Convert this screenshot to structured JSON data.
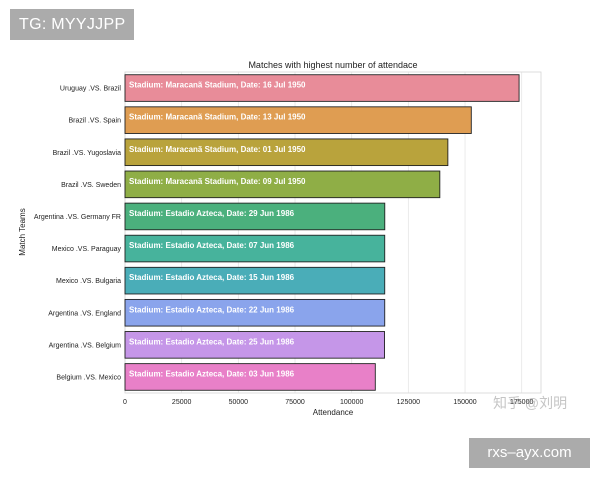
{
  "tag": {
    "text": "TG: MYYJJPP"
  },
  "footer": {
    "badge": "rxs–ayx.com"
  },
  "watermark": {
    "text": "知乎 @刘明"
  },
  "chart_data": {
    "type": "bar",
    "orientation": "horizontal",
    "title": "Matches with highest number of attendace",
    "xlabel": "Attendance",
    "ylabel": "Match Teams",
    "xlim": [
      0,
      180000
    ],
    "xticks": [
      0,
      25000,
      50000,
      75000,
      100000,
      125000,
      150000,
      175000
    ],
    "xtick_labels": [
      "0",
      "25000",
      "50000",
      "75000",
      "100000",
      "125000",
      "150000",
      "175000"
    ],
    "grid": true,
    "categories": [
      "Uruguay .VS. Brazil",
      "Brazil .VS. Spain",
      "Brazil .VS. Yugoslavia",
      "Brazil .VS. Sweden",
      "Argentina .VS. Germany FR",
      "Mexico .VS. Paraguay",
      "Mexico .VS. Bulgaria",
      "Argentina .VS. England",
      "Argentina .VS. Belgium",
      "Belgium .VS. Mexico"
    ],
    "values": [
      173850,
      152772,
      142429,
      138886,
      114600,
      114580,
      114580,
      114580,
      114500,
      110420
    ],
    "annotations": [
      "Stadium: Maracanã Stadium, Date: 16 Jul 1950",
      "Stadium: Maracanã Stadium, Date: 13 Jul 1950",
      "Stadium: Maracanã Stadium, Date: 01 Jul 1950",
      "Stadium: Maracanã Stadium, Date: 09 Jul 1950",
      "Stadium: Estadio Azteca, Date: 29 Jun 1986",
      "Stadium: Estadio Azteca, Date: 07 Jun 1986",
      "Stadium: Estadio Azteca, Date: 15 Jun 1986",
      "Stadium: Estadio Azteca, Date: 22 Jun 1986",
      "Stadium: Estadio Azteca, Date: 25 Jun 1986",
      "Stadium: Estadio Azteca, Date: 03 Jun 1986"
    ],
    "colors": [
      "#e88c99",
      "#df9d52",
      "#b9a33c",
      "#8fae46",
      "#4bb07d",
      "#47b39c",
      "#4aadb8",
      "#8aa4ec",
      "#c596e8",
      "#e880c8"
    ]
  }
}
